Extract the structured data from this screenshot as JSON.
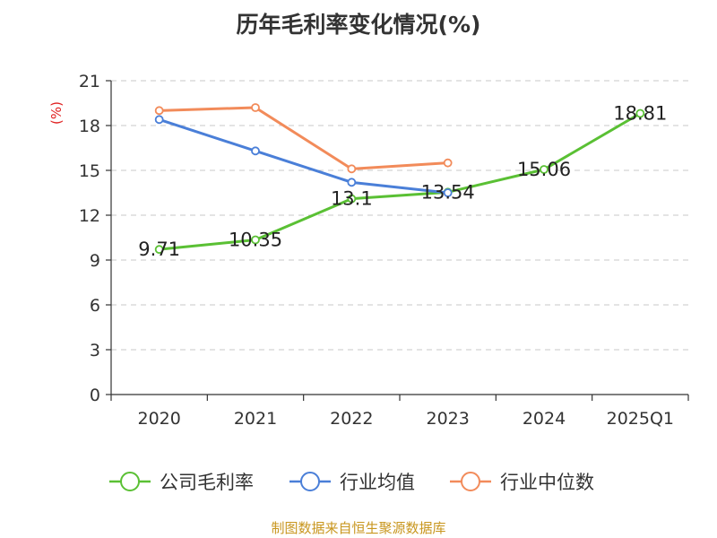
{
  "chart_data": {
    "type": "line",
    "title": "历年毛利率变化情况(%)",
    "ylabel": "(%)",
    "xlabel": "",
    "categories": [
      "2020",
      "2021",
      "2022",
      "2023",
      "2024",
      "2025Q1"
    ],
    "ylim": [
      0,
      21
    ],
    "yticks": [
      0,
      3,
      6,
      9,
      12,
      15,
      18,
      21
    ],
    "grid": true,
    "legend_position": "bottom",
    "series": [
      {
        "name": "公司毛利率",
        "color": "#5ac034",
        "values": [
          9.71,
          10.35,
          13.1,
          13.54,
          15.06,
          18.81
        ],
        "labels": [
          "9.71",
          "10.35",
          "13.1",
          "13.54",
          "15.06",
          "18.81"
        ]
      },
      {
        "name": "行业均值",
        "color": "#4a7fd8",
        "values": [
          18.4,
          16.3,
          14.2,
          13.5,
          null,
          null
        ]
      },
      {
        "name": "行业中位数",
        "color": "#f28b5a",
        "values": [
          19.0,
          19.2,
          15.1,
          15.5,
          null,
          null
        ]
      }
    ]
  },
  "source": "制图数据来自恒生聚源数据库"
}
